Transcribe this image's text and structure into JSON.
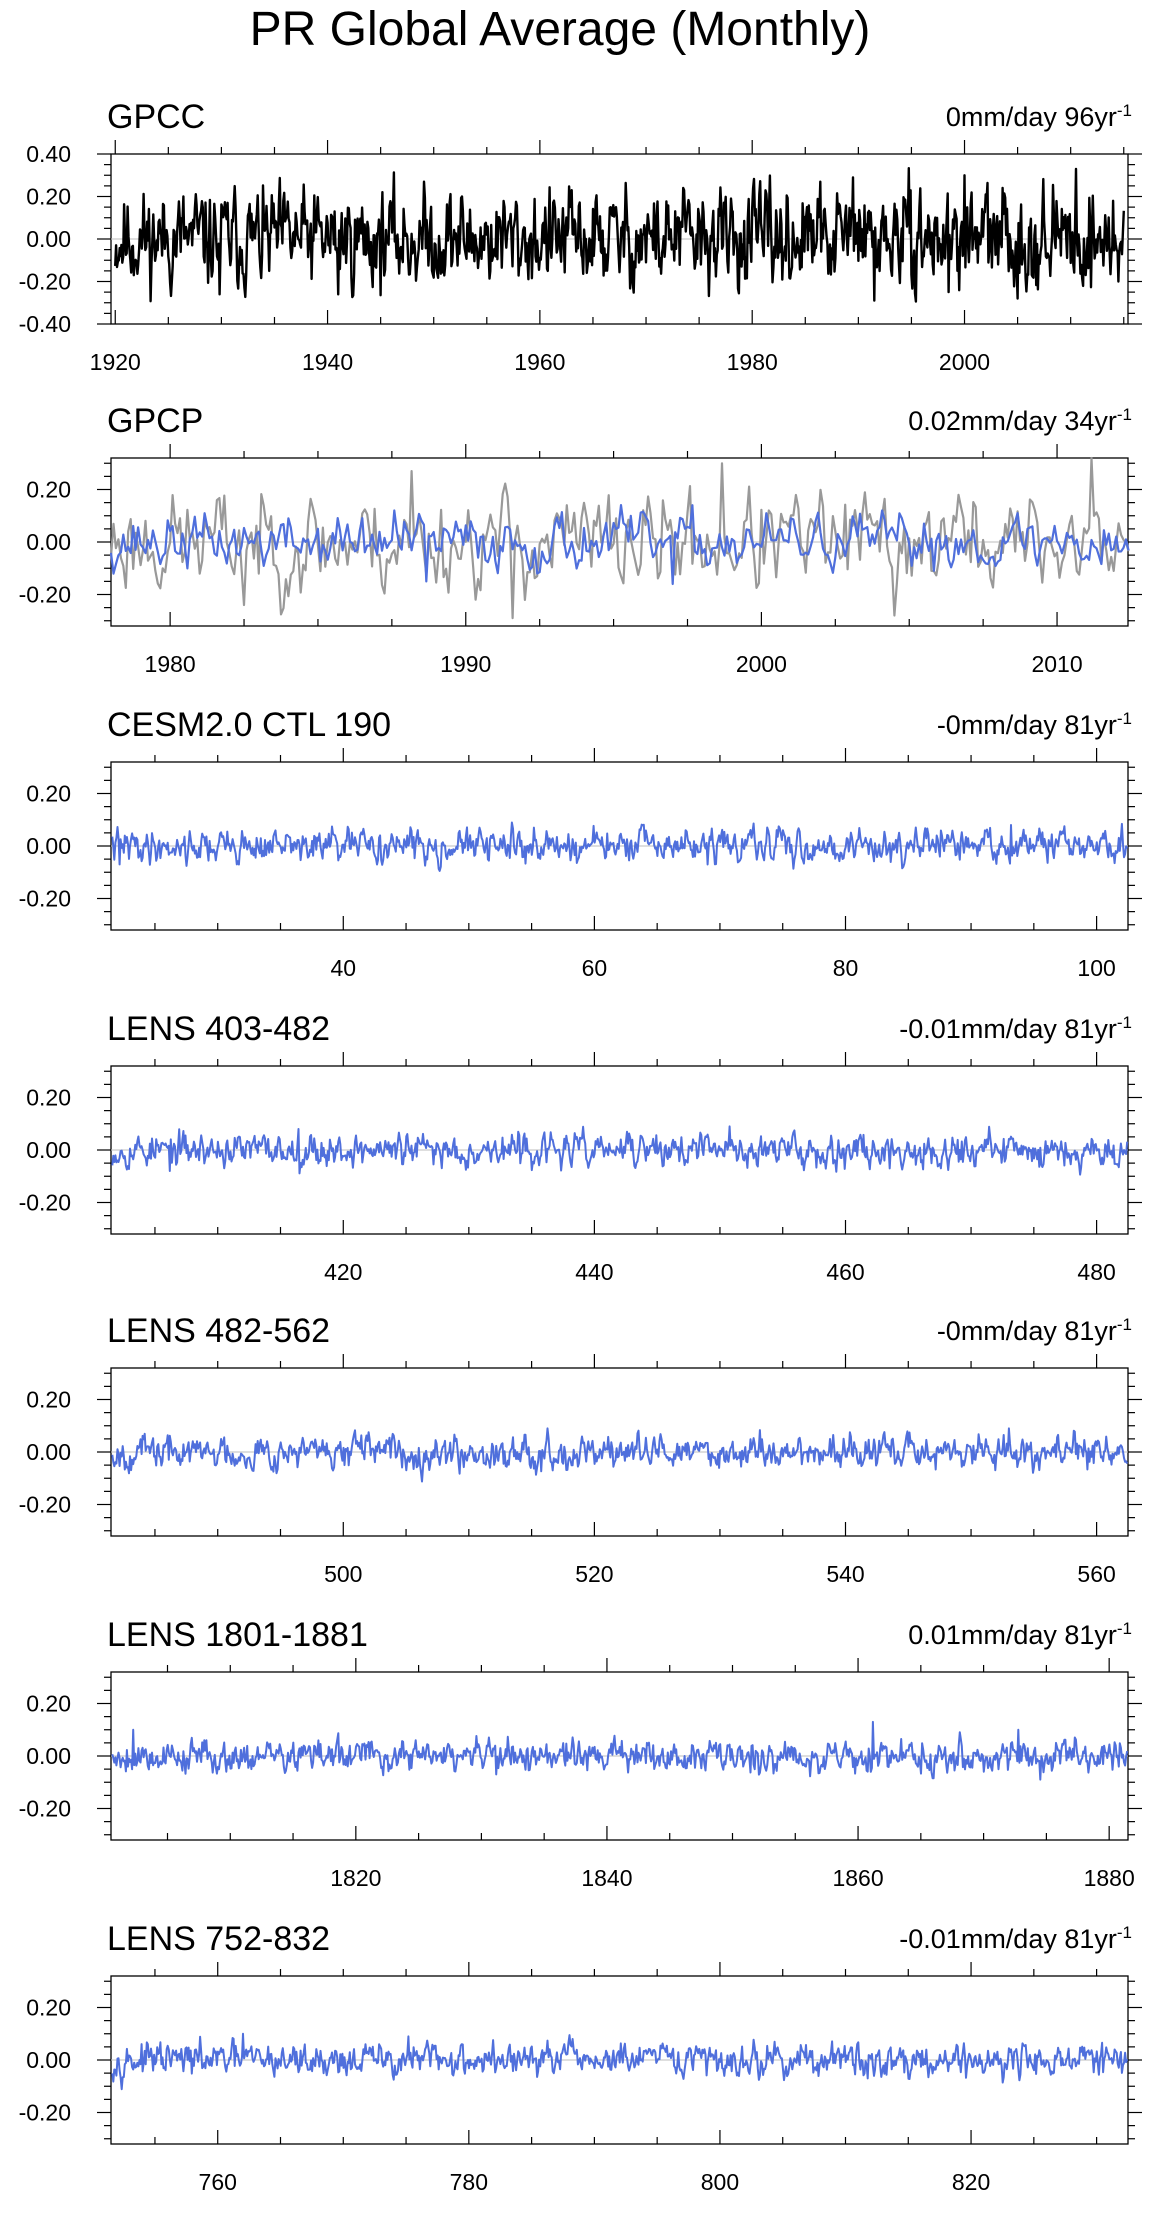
{
  "page": {
    "title": "PR Global Average (Monthly)"
  },
  "chart_data": [
    {
      "type": "line",
      "name": "GPCC",
      "trend_value": "0mm/day 96yr",
      "trend_exp": "-1",
      "xlim": [
        1919.6,
        2015.4
      ],
      "ylim": [
        -0.4,
        0.4
      ],
      "xticks": [
        1920,
        1940,
        1960,
        1980,
        2000
      ],
      "xtick_labels": [
        "1920",
        "1940",
        "1960",
        "1980",
        "2000"
      ],
      "yticks": [
        -0.4,
        -0.2,
        0.0,
        0.2,
        0.4
      ],
      "ytick_labels": [
        "-0.40",
        "-0.20",
        "0.00",
        "0.20",
        "0.40"
      ],
      "series": [
        {
          "color": "#000000",
          "width": 2.4,
          "start": 1920,
          "end": 2015,
          "amp": 0.1,
          "seed": 11,
          "points": [
            [
              1929.8,
              -0.26
            ],
            [
              1941,
              -0.26
            ],
            [
              1973.5,
              0.24
            ],
            [
              1989.5,
              0.29
            ],
            [
              1991.5,
              -0.29
            ],
            [
              1998.5,
              -0.25
            ],
            [
              2000,
              0.3
            ],
            [
              2005,
              -0.28
            ],
            [
              2010.5,
              0.33
            ],
            [
              2014.5,
              -0.2
            ]
          ]
        }
      ]
    },
    {
      "type": "line",
      "name": "GPCP",
      "trend_value": "0.02mm/day 34yr",
      "trend_exp": "-1",
      "xlim": [
        1978,
        2012.4
      ],
      "ylim": [
        -0.32,
        0.32
      ],
      "xticks": [
        1980,
        1990,
        2000,
        2010
      ],
      "xtick_labels": [
        "1980",
        "1990",
        "2000",
        "2010"
      ],
      "yticks": [
        -0.2,
        0.0,
        0.2
      ],
      "ytick_labels": [
        "-0.20",
        "0.00",
        "0.20"
      ],
      "series": [
        {
          "color": "#999999",
          "width": 2.2,
          "start": 1978,
          "end": 2012.4,
          "amp": 0.085,
          "seed": 23,
          "points": [
            [
              1982.5,
              -0.24
            ],
            [
              1988.2,
              0.27
            ],
            [
              1991.6,
              -0.29
            ],
            [
              1998.7,
              0.3
            ],
            [
              2004.5,
              -0.28
            ],
            [
              2006.7,
              0.18
            ],
            [
              2011.2,
              0.33
            ]
          ]
        },
        {
          "color": "#4f6fdc",
          "width": 2.2,
          "start": 1978,
          "end": 2012.4,
          "amp": 0.045,
          "seed": 37,
          "points": [
            [
              1987.6,
              0.12
            ],
            [
              1988.7,
              -0.15
            ],
            [
              1992.4,
              -0.12
            ],
            [
              1995.6,
              0.1
            ],
            [
              1997.0,
              -0.16
            ]
          ]
        }
      ]
    },
    {
      "type": "line",
      "name": "CESM2.0 CTL 190",
      "trend_value": "-0mm/day 81yr",
      "trend_exp": "-1",
      "xlim": [
        21.5,
        102.5
      ],
      "ylim": [
        -0.32,
        0.32
      ],
      "xticks": [
        40,
        60,
        80,
        100
      ],
      "xtick_labels": [
        "40",
        "60",
        "80",
        "100"
      ],
      "yticks": [
        -0.2,
        0.0,
        0.2
      ],
      "ytick_labels": [
        "-0.20",
        "0.00",
        "0.20"
      ],
      "series": [
        {
          "color": "#4f6fdc",
          "width": 2.0,
          "start": 21.6,
          "end": 102.4,
          "amp": 0.028,
          "seed": 41,
          "points": [
            [
              55.2,
              0.07
            ],
            [
              93.2,
              0.08
            ],
            [
              22.2,
              -0.07
            ]
          ]
        }
      ]
    },
    {
      "type": "line",
      "name": "LENS 403-482",
      "trend_value": "-0.01mm/day 81yr",
      "trend_exp": "-1",
      "xlim": [
        401.5,
        482.5
      ],
      "ylim": [
        -0.32,
        0.32
      ],
      "xticks": [
        420,
        440,
        460,
        480
      ],
      "xtick_labels": [
        "420",
        "440",
        "460",
        "480"
      ],
      "yticks": [
        -0.2,
        0.0,
        0.2
      ],
      "ytick_labels": [
        "-0.20",
        "0.00",
        "0.20"
      ],
      "series": [
        {
          "color": "#4f6fdc",
          "width": 2.0,
          "start": 401.6,
          "end": 482.4,
          "amp": 0.028,
          "seed": 53,
          "points": [
            [
              416.4,
              0.08
            ],
            [
              450.8,
              0.09
            ],
            [
              406.2,
              -0.08
            ],
            [
              463.5,
              -0.07
            ]
          ]
        }
      ]
    },
    {
      "type": "line",
      "name": "LENS 482-562",
      "trend_value": "-0mm/day 81yr",
      "trend_exp": "-1",
      "xlim": [
        481.5,
        562.5
      ],
      "ylim": [
        -0.32,
        0.32
      ],
      "xticks": [
        500,
        520,
        540,
        560
      ],
      "xtick_labels": [
        "500",
        "520",
        "540",
        "560"
      ],
      "yticks": [
        -0.2,
        0.0,
        0.2
      ],
      "ytick_labels": [
        "-0.20",
        "0.00",
        "0.20"
      ],
      "series": [
        {
          "color": "#4f6fdc",
          "width": 2.0,
          "start": 481.6,
          "end": 562.4,
          "amp": 0.028,
          "seed": 67,
          "points": [
            [
              516.3,
              0.09
            ],
            [
              553.0,
              0.09
            ],
            [
              500.1,
              -0.05
            ]
          ]
        }
      ]
    },
    {
      "type": "line",
      "name": "LENS 1801-1881",
      "trend_value": "0.01mm/day 81yr",
      "trend_exp": "-1",
      "xlim": [
        1800.5,
        1881.5
      ],
      "ylim": [
        -0.32,
        0.32
      ],
      "xticks": [
        1820,
        1840,
        1860,
        1880
      ],
      "xtick_labels": [
        "1820",
        "1840",
        "1860",
        "1880"
      ],
      "yticks": [
        -0.2,
        0.0,
        0.2
      ],
      "ytick_labels": [
        "-0.20",
        "0.00",
        "0.20"
      ],
      "series": [
        {
          "color": "#4f6fdc",
          "width": 2.0,
          "start": 1800.6,
          "end": 1881.4,
          "amp": 0.028,
          "seed": 79,
          "points": [
            [
              1802.3,
              0.1
            ],
            [
              1861.2,
              0.13
            ],
            [
              1872.8,
              0.1
            ],
            [
              1874.5,
              -0.09
            ],
            [
              1831.2,
              -0.07
            ]
          ]
        }
      ]
    },
    {
      "type": "line",
      "name": "LENS 752-832",
      "trend_value": "-0.01mm/day 81yr",
      "trend_exp": "-1",
      "xlim": [
        751.5,
        832.5
      ],
      "ylim": [
        -0.32,
        0.32
      ],
      "xticks": [
        760,
        780,
        800,
        820
      ],
      "xtick_labels": [
        "760",
        "780",
        "800",
        "820"
      ],
      "yticks": [
        -0.2,
        0.0,
        0.2
      ],
      "ytick_labels": [
        "-0.20",
        "0.00",
        "0.20"
      ],
      "series": [
        {
          "color": "#4f6fdc",
          "width": 2.0,
          "start": 751.6,
          "end": 832.4,
          "amp": 0.028,
          "seed": 97,
          "points": [
            [
              762.0,
              0.1
            ],
            [
              775.2,
              0.09
            ],
            [
              788.3,
              0.08
            ],
            [
              811.8,
              -0.07
            ]
          ]
        }
      ]
    }
  ]
}
